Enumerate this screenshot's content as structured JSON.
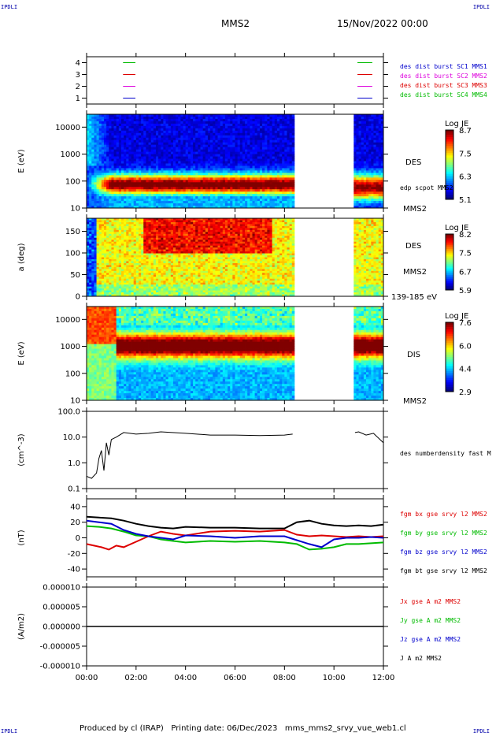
{
  "corner_label": "IPDLI",
  "header": {
    "title": "MMS2",
    "date": "15/Nov/2022 00:00"
  },
  "footer": {
    "produced": "Produced by cl (IRAP)",
    "printing": "Printing date: 06/Dec/2023",
    "script": "mms_mms2_srvy_vue_web1.cl"
  },
  "colors": {
    "blue": "#0000cc",
    "magenta": "#dd00dd",
    "red": "#dd0000",
    "green": "#00bb00",
    "black": "#000000"
  },
  "chart_data": [
    {
      "type": "line",
      "ylim": [
        0.5,
        4.5
      ],
      "ytick_labels": [
        "4",
        "3",
        "2",
        "1"
      ],
      "yticks": [
        4,
        3,
        2,
        1
      ],
      "series": [
        {
          "name": "des dist burst SC1 MMS1",
          "color": "#0000cc",
          "level": 1
        },
        {
          "name": "des dist burst SC2 MMS2",
          "color": "#dd00dd",
          "level": 2
        },
        {
          "name": "des dist burst SC3 MMS3",
          "color": "#dd0000",
          "level": 3
        },
        {
          "name": "des dist burst SC4 MMS4",
          "color": "#00bb00",
          "level": 4
        }
      ],
      "segments_hours": [
        [
          0.9,
          1.4
        ],
        [
          10.95,
          11.55
        ]
      ]
    },
    {
      "type": "heatmap",
      "ylabel": "E (eV)",
      "yscale": "log",
      "ylim": [
        10,
        30000
      ],
      "ytick_labels": [
        "10000",
        "1000",
        "100",
        "10"
      ],
      "yticks": [
        10000,
        1000,
        100,
        10
      ],
      "right_labels": [
        "DES",
        "edp scpot MMS2",
        "MMS2"
      ],
      "colorbar": {
        "title": "Log JE",
        "ticks": [
          "8.7",
          "7.5",
          "6.3",
          "5.1"
        ],
        "range": [
          5.1,
          8.7
        ]
      },
      "data_gap_hours": [
        8.35,
        10.85
      ]
    },
    {
      "type": "heatmap",
      "ylabel": "a (deg)",
      "ylim": [
        0,
        180
      ],
      "ytick_labels": [
        "150",
        "100",
        "50",
        "0"
      ],
      "yticks": [
        150,
        100,
        50,
        0
      ],
      "right_labels": [
        "DES",
        "MMS2",
        "139-185 eV"
      ],
      "colorbar": {
        "title": "Log JE",
        "ticks": [
          "8.2",
          "7.5",
          "6.7",
          "5.9"
        ],
        "range": [
          5.9,
          8.2
        ]
      },
      "data_gap_hours": [
        8.35,
        10.85
      ]
    },
    {
      "type": "heatmap",
      "ylabel": "E (eV)",
      "yscale": "log",
      "ylim": [
        10,
        30000
      ],
      "ytick_labels": [
        "10000",
        "1000",
        "100",
        "10"
      ],
      "yticks": [
        10000,
        1000,
        100,
        10
      ],
      "right_labels": [
        "DIS",
        "MMS2"
      ],
      "colorbar": {
        "title": "Log JE",
        "ticks": [
          "7.6",
          "6.0",
          "4.4",
          "2.9"
        ],
        "range": [
          2.9,
          7.6
        ]
      },
      "data_gap_hours": [
        8.35,
        10.85
      ]
    },
    {
      "type": "line",
      "ylabel": "(cm^-3)",
      "yscale": "log",
      "ylim": [
        0.1,
        100
      ],
      "ytick_labels": [
        "100.0",
        "10.0",
        "1.0",
        "0.1"
      ],
      "yticks": [
        100,
        10,
        1,
        0.1
      ],
      "series": [
        {
          "name": "des numberdensity fast M",
          "color": "#000000",
          "x": [
            0.0,
            0.2,
            0.4,
            0.5,
            0.6,
            0.7,
            0.8,
            0.9,
            1.0,
            1.2,
            1.5,
            2.0,
            2.5,
            3.0,
            4.0,
            5.0,
            6.0,
            7.0,
            8.0,
            8.33,
            10.85,
            11.0,
            11.3,
            11.6,
            12.0
          ],
          "y": [
            0.3,
            0.25,
            0.4,
            1.5,
            3.0,
            0.5,
            6.0,
            2.0,
            8.0,
            10.0,
            15.0,
            13.0,
            14.0,
            16.0,
            14.0,
            12.0,
            12.0,
            11.5,
            12.0,
            13.0,
            15.0,
            16.0,
            12.0,
            14.0,
            6.0
          ]
        }
      ]
    },
    {
      "type": "line",
      "ylabel": "(nT)",
      "ylim": [
        -50,
        50
      ],
      "ytick_labels": [
        "40",
        "20",
        "0",
        "-20",
        "-40"
      ],
      "yticks": [
        40,
        20,
        0,
        -20,
        -40
      ],
      "series": [
        {
          "name": "fgm bx gse srvy l2 MMS2",
          "color": "#dd0000",
          "x": [
            0,
            0.3,
            0.6,
            0.9,
            1.2,
            1.5,
            2,
            2.5,
            3,
            3.5,
            4,
            5,
            6,
            7,
            8,
            8.5,
            9,
            9.5,
            10,
            10.5,
            11,
            11.5,
            12
          ],
          "y": [
            -8,
            -10,
            -12,
            -15,
            -10,
            -12,
            -5,
            2,
            8,
            5,
            3,
            8,
            9,
            8,
            10,
            4,
            2,
            3,
            2,
            1,
            2,
            1,
            2
          ]
        },
        {
          "name": "fgm by gse srvy l2 MMS2",
          "color": "#00bb00",
          "x": [
            0,
            0.5,
            1,
            1.5,
            2,
            2.5,
            3,
            3.5,
            4,
            5,
            6,
            7,
            8,
            8.5,
            9,
            9.5,
            10,
            10.5,
            11,
            11.5,
            12
          ],
          "y": [
            15,
            14,
            12,
            8,
            3,
            2,
            -2,
            -4,
            -6,
            -4,
            -5,
            -4,
            -6,
            -8,
            -15,
            -14,
            -12,
            -8,
            -8,
            -7,
            -6
          ]
        },
        {
          "name": "fgm bz gse srvy l2 MMS2",
          "color": "#0000cc",
          "x": [
            0,
            0.5,
            1,
            1.5,
            2,
            2.5,
            3,
            3.5,
            4,
            5,
            6,
            7,
            8,
            8.5,
            9,
            9.5,
            10,
            10.5,
            11,
            11.5,
            12
          ],
          "y": [
            22,
            20,
            18,
            10,
            5,
            2,
            0,
            -2,
            3,
            2,
            0,
            2,
            2,
            -3,
            -8,
            -12,
            -2,
            0,
            0,
            1,
            0
          ]
        },
        {
          "name": "fgm bt gse srvy l2 MMS2",
          "color": "#000000",
          "x": [
            0,
            0.5,
            1,
            1.5,
            2,
            2.5,
            3,
            3.5,
            4,
            5,
            6,
            7,
            8,
            8.5,
            9,
            9.5,
            10,
            10.5,
            11,
            11.5,
            12
          ],
          "y": [
            27,
            26,
            25,
            22,
            18,
            15,
            13,
            12,
            14,
            13,
            13,
            12,
            12,
            20,
            22,
            18,
            16,
            15,
            16,
            15,
            17
          ]
        }
      ]
    },
    {
      "type": "line",
      "ylabel": "(A/m2)",
      "ylim": [
        -0.0001,
        0.0001
      ],
      "ytick_labels": [
        "0.000010",
        "0.000005",
        "0.000000",
        "-0.000005",
        "-0.000010"
      ],
      "yticks": [
        1e-05,
        5e-06,
        0,
        -5e-06,
        -1e-05
      ],
      "tick_scale": 1e-05,
      "series": [
        {
          "name": "Jx gse A m2 MMS2",
          "color": "#dd0000"
        },
        {
          "name": "Jy gse A m2 MMS2",
          "color": "#00bb00"
        },
        {
          "name": "Jz gse A m2 MMS2",
          "color": "#0000cc"
        },
        {
          "name": "J A m2 MMS2",
          "color": "#000000"
        }
      ],
      "x": [
        0,
        12
      ],
      "y": [
        0,
        0
      ]
    }
  ],
  "time_axis": {
    "range_hours": [
      0,
      12
    ],
    "tick_labels": [
      "00:00",
      "02:00",
      "04:00",
      "06:00",
      "08:00",
      "10:00",
      "12:00"
    ],
    "ticks_hours": [
      0,
      2,
      4,
      6,
      8,
      10,
      12
    ]
  }
}
